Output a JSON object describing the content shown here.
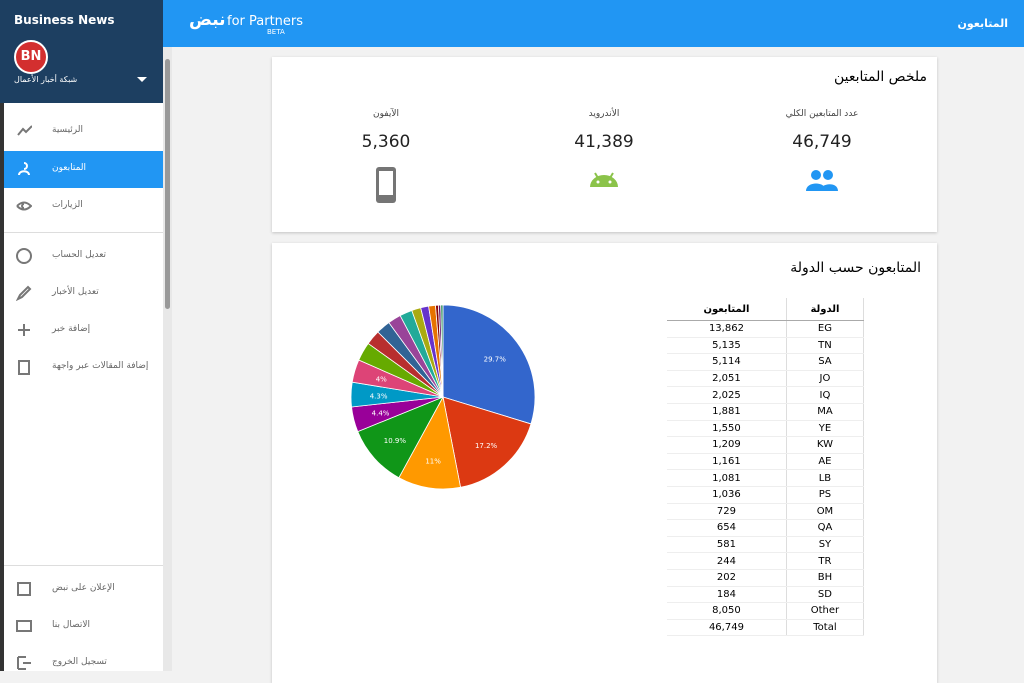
{
  "sidebar": {
    "brand": "Business News",
    "logo": "BN",
    "account": "شبكة أخبار الأعمال",
    "menu": [
      "الرئيسية",
      "المتابعون",
      "الزيارات",
      "تعديل الحساب",
      "تعديل الأخبار",
      "إضافة خبر",
      "إضافة المقالات عبر واجهة"
    ],
    "bottom_menu": [
      "الإعلان على نبض",
      "الاتصال بنا",
      "تسجيل الخروج"
    ]
  },
  "header": {
    "page_title": "المتابعون",
    "brand_arabic": "نبض",
    "brand_suffix": "for Partners",
    "badge": "BETA"
  },
  "summary": {
    "title": "ملخص المتابعين",
    "stats": [
      {
        "label": "عدد المتابعين الكلي",
        "value": "46,749"
      },
      {
        "label": "الأندرويد",
        "value": "41,389"
      },
      {
        "label": "الآيفون",
        "value": "5,360"
      }
    ]
  },
  "countries": {
    "title": "المتابعون حسب الدولة",
    "table": {
      "headers": [
        "المتابعون",
        "الدولة"
      ],
      "rows": [
        [
          "13,862",
          "EG"
        ],
        [
          "5,135",
          "TN"
        ],
        [
          "5,114",
          "SA"
        ],
        [
          "2,051",
          "JO"
        ],
        [
          "2,025",
          "IQ"
        ],
        [
          "1,881",
          "MA"
        ],
        [
          "1,550",
          "YE"
        ],
        [
          "1,209",
          "KW"
        ],
        [
          "1,161",
          "AE"
        ],
        [
          "1,081",
          "LB"
        ],
        [
          "1,036",
          "PS"
        ],
        [
          "729",
          "OM"
        ],
        [
          "654",
          "QA"
        ],
        [
          "581",
          "SY"
        ],
        [
          "244",
          "TR"
        ],
        [
          "202",
          "BH"
        ],
        [
          "184",
          "SD"
        ],
        [
          "8,050",
          "Other"
        ],
        [
          "46,749",
          "Total"
        ]
      ]
    }
  },
  "chart_data": {
    "type": "pie",
    "values": [
      29.7,
      17.2,
      11,
      10.9,
      4.4,
      4.3,
      4,
      3.3,
      2.6,
      2.5,
      2.3,
      2.2,
      1.6,
      1.4,
      1.2,
      0.5,
      0.4,
      0.4
    ],
    "value_labels": [
      "29.7%",
      "17.2%",
      "11%",
      "10.9%",
      "4.4%",
      "4.3%",
      "4%",
      null,
      null,
      null,
      null,
      null,
      null,
      null,
      null,
      null,
      null,
      null
    ],
    "colors": [
      "#3366cc",
      "#dc3912",
      "#ff9900",
      "#109618",
      "#990099",
      "#0099c6",
      "#dd4477",
      "#66aa00",
      "#b82e2e",
      "#316395",
      "#994499",
      "#22aa99",
      "#aaaa11",
      "#6633cc",
      "#e67300",
      "#8b0707",
      "#651067",
      "#329262"
    ]
  }
}
